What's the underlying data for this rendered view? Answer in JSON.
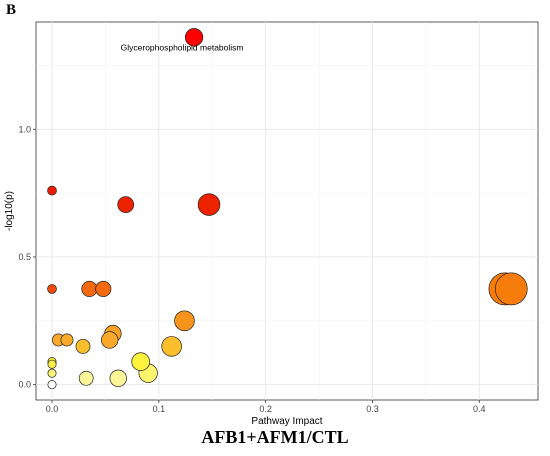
{
  "panel_label": "B",
  "caption": "AFB1+AFM1/CTL",
  "chart_data": {
    "type": "scatter",
    "xlabel": "Pathway Impact",
    "ylabel": "-log10(p)",
    "xlim": [
      -0.015,
      0.455
    ],
    "ylim": [
      -0.06,
      1.42
    ],
    "x_ticks": [
      0.0,
      0.1,
      0.2,
      0.3,
      0.4
    ],
    "x_tick_labels": [
      "0.0",
      "0.1",
      "0.2",
      "0.3",
      "0.4"
    ],
    "y_ticks": [
      0.0,
      0.5,
      1.0
    ],
    "y_tick_labels": [
      "0.0",
      "0.5",
      "1.0"
    ],
    "grid": true,
    "color_scale": "white-yellow-orange-red by -log10(p)",
    "annotations": [
      {
        "text": "Glycerophospholipid metabolism",
        "x": 0.133,
        "y": 1.36
      }
    ],
    "points": [
      {
        "x": 0.133,
        "y": 1.36,
        "size": 0.55,
        "color": "#ff0000"
      },
      {
        "x": 0.0,
        "y": 0.76,
        "size": 0.28,
        "color": "#f01c00"
      },
      {
        "x": 0.069,
        "y": 0.705,
        "size": 0.5,
        "color": "#ef2200"
      },
      {
        "x": 0.147,
        "y": 0.705,
        "size": 0.68,
        "color": "#ef2200"
      },
      {
        "x": 0.0,
        "y": 0.375,
        "size": 0.28,
        "color": "#f04a0a"
      },
      {
        "x": 0.035,
        "y": 0.375,
        "size": 0.48,
        "color": "#f36a10"
      },
      {
        "x": 0.048,
        "y": 0.375,
        "size": 0.48,
        "color": "#f36a10"
      },
      {
        "x": 0.424,
        "y": 0.375,
        "size": 1.0,
        "color": "#f67c0c"
      },
      {
        "x": 0.43,
        "y": 0.375,
        "size": 1.0,
        "color": "#f67c0c"
      },
      {
        "x": 0.124,
        "y": 0.25,
        "size": 0.62,
        "color": "#f7941d"
      },
      {
        "x": 0.057,
        "y": 0.2,
        "size": 0.52,
        "color": "#f9a125"
      },
      {
        "x": 0.006,
        "y": 0.175,
        "size": 0.38,
        "color": "#faa92a"
      },
      {
        "x": 0.014,
        "y": 0.175,
        "size": 0.38,
        "color": "#faa92a"
      },
      {
        "x": 0.054,
        "y": 0.175,
        "size": 0.52,
        "color": "#faa92a"
      },
      {
        "x": 0.112,
        "y": 0.15,
        "size": 0.62,
        "color": "#fbbe2c"
      },
      {
        "x": 0.029,
        "y": 0.15,
        "size": 0.44,
        "color": "#fbbe2c"
      },
      {
        "x": 0.0,
        "y": 0.09,
        "size": 0.26,
        "color": "#fde93a"
      },
      {
        "x": 0.0,
        "y": 0.08,
        "size": 0.26,
        "color": "#fdef48"
      },
      {
        "x": 0.083,
        "y": 0.09,
        "size": 0.56,
        "color": "#fdf23c"
      },
      {
        "x": 0.0,
        "y": 0.045,
        "size": 0.26,
        "color": "#fdf57a"
      },
      {
        "x": 0.09,
        "y": 0.045,
        "size": 0.58,
        "color": "#fdf56c"
      },
      {
        "x": 0.032,
        "y": 0.025,
        "size": 0.44,
        "color": "#fdf79a"
      },
      {
        "x": 0.062,
        "y": 0.025,
        "size": 0.52,
        "color": "#fdf79a"
      },
      {
        "x": 0.0,
        "y": 0.0,
        "size": 0.26,
        "color": "#ffffff"
      }
    ]
  }
}
